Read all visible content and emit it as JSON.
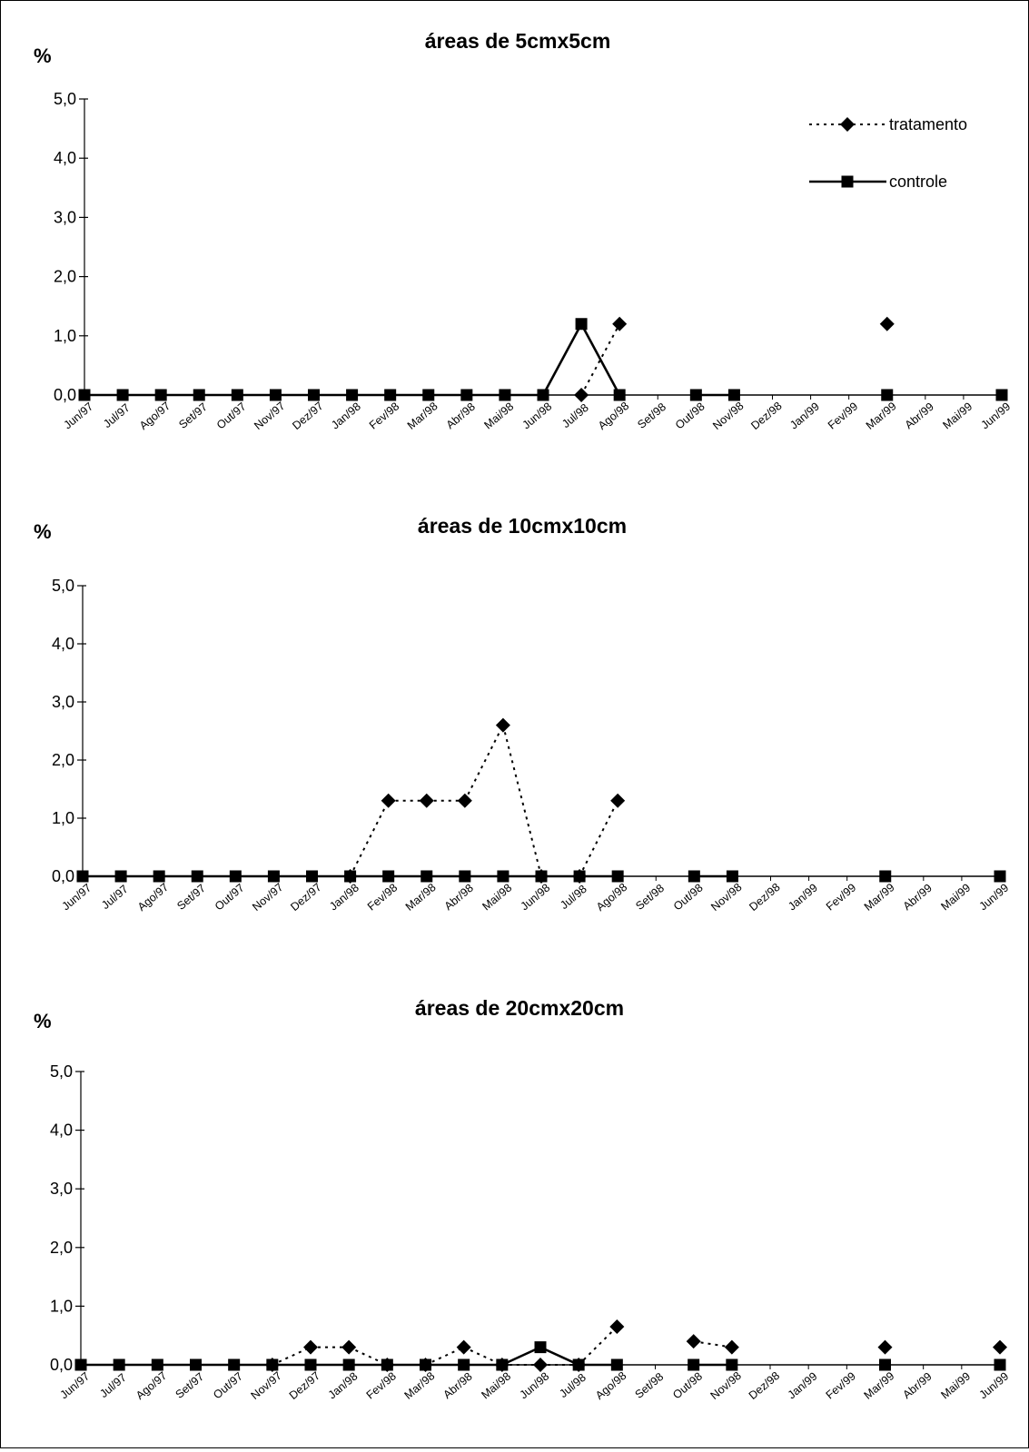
{
  "categories": [
    "Jun/97",
    "Jul/97",
    "Ago/97",
    "Set/97",
    "Out/97",
    "Nov/97",
    "Dez/97",
    "Jan/98",
    "Fev/98",
    "Mar/98",
    "Abr/98",
    "Mai/98",
    "Jun/98",
    "Jul/98",
    "Ago/98",
    "Set/98",
    "Out/98",
    "Nov/98",
    "Dez/98",
    "Jan/99",
    "Fev/99",
    "Mar/99",
    "Abr/99",
    "Mai/99",
    "Jun/99"
  ],
  "legend": {
    "tratamento": "tratamento",
    "controle": "controle"
  },
  "chart_data": [
    {
      "type": "line",
      "title": "áreas de 5cmx5cm",
      "ylabel": "%",
      "ylim": [
        0,
        5
      ],
      "yticks": [
        "0,0",
        "1,0",
        "2,0",
        "3,0",
        "4,0",
        "5,0"
      ],
      "legend_position": "top-right",
      "series": [
        {
          "name": "tratamento",
          "style": "dotted",
          "marker": "diamond",
          "points": [
            [
              13,
              0.0
            ],
            [
              14,
              1.2
            ],
            [
              21,
              1.2
            ]
          ]
        },
        {
          "name": "controle",
          "style": "solid",
          "marker": "square",
          "points": [
            [
              0,
              0
            ],
            [
              1,
              0
            ],
            [
              2,
              0
            ],
            [
              3,
              0
            ],
            [
              4,
              0
            ],
            [
              5,
              0
            ],
            [
              6,
              0
            ],
            [
              7,
              0
            ],
            [
              8,
              0
            ],
            [
              9,
              0
            ],
            [
              10,
              0
            ],
            [
              11,
              0
            ],
            [
              12,
              0
            ],
            [
              13,
              1.2
            ],
            [
              14,
              0
            ],
            [
              16,
              0
            ],
            [
              17,
              0
            ],
            [
              21,
              0
            ],
            [
              24,
              0
            ]
          ]
        }
      ]
    },
    {
      "type": "line",
      "title": "áreas de 10cmx10cm",
      "ylabel": "%",
      "ylim": [
        0,
        5
      ],
      "yticks": [
        "0,0",
        "1,0",
        "2,0",
        "3,0",
        "4,0",
        "5,0"
      ],
      "series": [
        {
          "name": "tratamento",
          "style": "dotted",
          "marker": "diamond",
          "points": [
            [
              7,
              0.0
            ],
            [
              8,
              1.3
            ],
            [
              9,
              1.3
            ],
            [
              10,
              1.3
            ],
            [
              11,
              2.6
            ],
            [
              12,
              0.0
            ],
            [
              13,
              0.0
            ],
            [
              14,
              1.3
            ]
          ]
        },
        {
          "name": "controle",
          "style": "solid",
          "marker": "square",
          "points": [
            [
              0,
              0
            ],
            [
              1,
              0
            ],
            [
              2,
              0
            ],
            [
              3,
              0
            ],
            [
              4,
              0
            ],
            [
              5,
              0
            ],
            [
              6,
              0
            ],
            [
              7,
              0
            ],
            [
              8,
              0
            ],
            [
              9,
              0
            ],
            [
              10,
              0
            ],
            [
              11,
              0
            ],
            [
              12,
              0
            ],
            [
              13,
              0
            ],
            [
              14,
              0
            ],
            [
              16,
              0
            ],
            [
              17,
              0
            ],
            [
              21,
              0
            ],
            [
              24,
              0
            ]
          ]
        }
      ]
    },
    {
      "type": "line",
      "title": "áreas de 20cmx20cm",
      "ylabel": "%",
      "ylim": [
        0,
        5
      ],
      "yticks": [
        "0,0",
        "1,0",
        "2,0",
        "3,0",
        "4,0",
        "5,0"
      ],
      "series": [
        {
          "name": "tratamento",
          "style": "dotted",
          "marker": "diamond",
          "points": [
            [
              5,
              0.0
            ],
            [
              6,
              0.3
            ],
            [
              7,
              0.3
            ],
            [
              8,
              0.0
            ],
            [
              9,
              0.0
            ],
            [
              10,
              0.3
            ],
            [
              11,
              0.0
            ],
            [
              12,
              0.0
            ],
            [
              13,
              0.0
            ],
            [
              14,
              0.65
            ],
            [
              16,
              0.4
            ],
            [
              17,
              0.3
            ],
            [
              21,
              0.3
            ],
            [
              24,
              0.3
            ]
          ]
        },
        {
          "name": "controle",
          "style": "solid",
          "marker": "square",
          "points": [
            [
              0,
              0
            ],
            [
              1,
              0
            ],
            [
              2,
              0
            ],
            [
              3,
              0
            ],
            [
              4,
              0
            ],
            [
              5,
              0
            ],
            [
              6,
              0
            ],
            [
              7,
              0
            ],
            [
              8,
              0
            ],
            [
              9,
              0
            ],
            [
              10,
              0
            ],
            [
              11,
              0
            ],
            [
              12,
              0.3
            ],
            [
              13,
              0
            ],
            [
              14,
              0
            ],
            [
              16,
              0
            ],
            [
              17,
              0
            ],
            [
              21,
              0
            ],
            [
              24,
              0
            ]
          ]
        }
      ]
    }
  ]
}
